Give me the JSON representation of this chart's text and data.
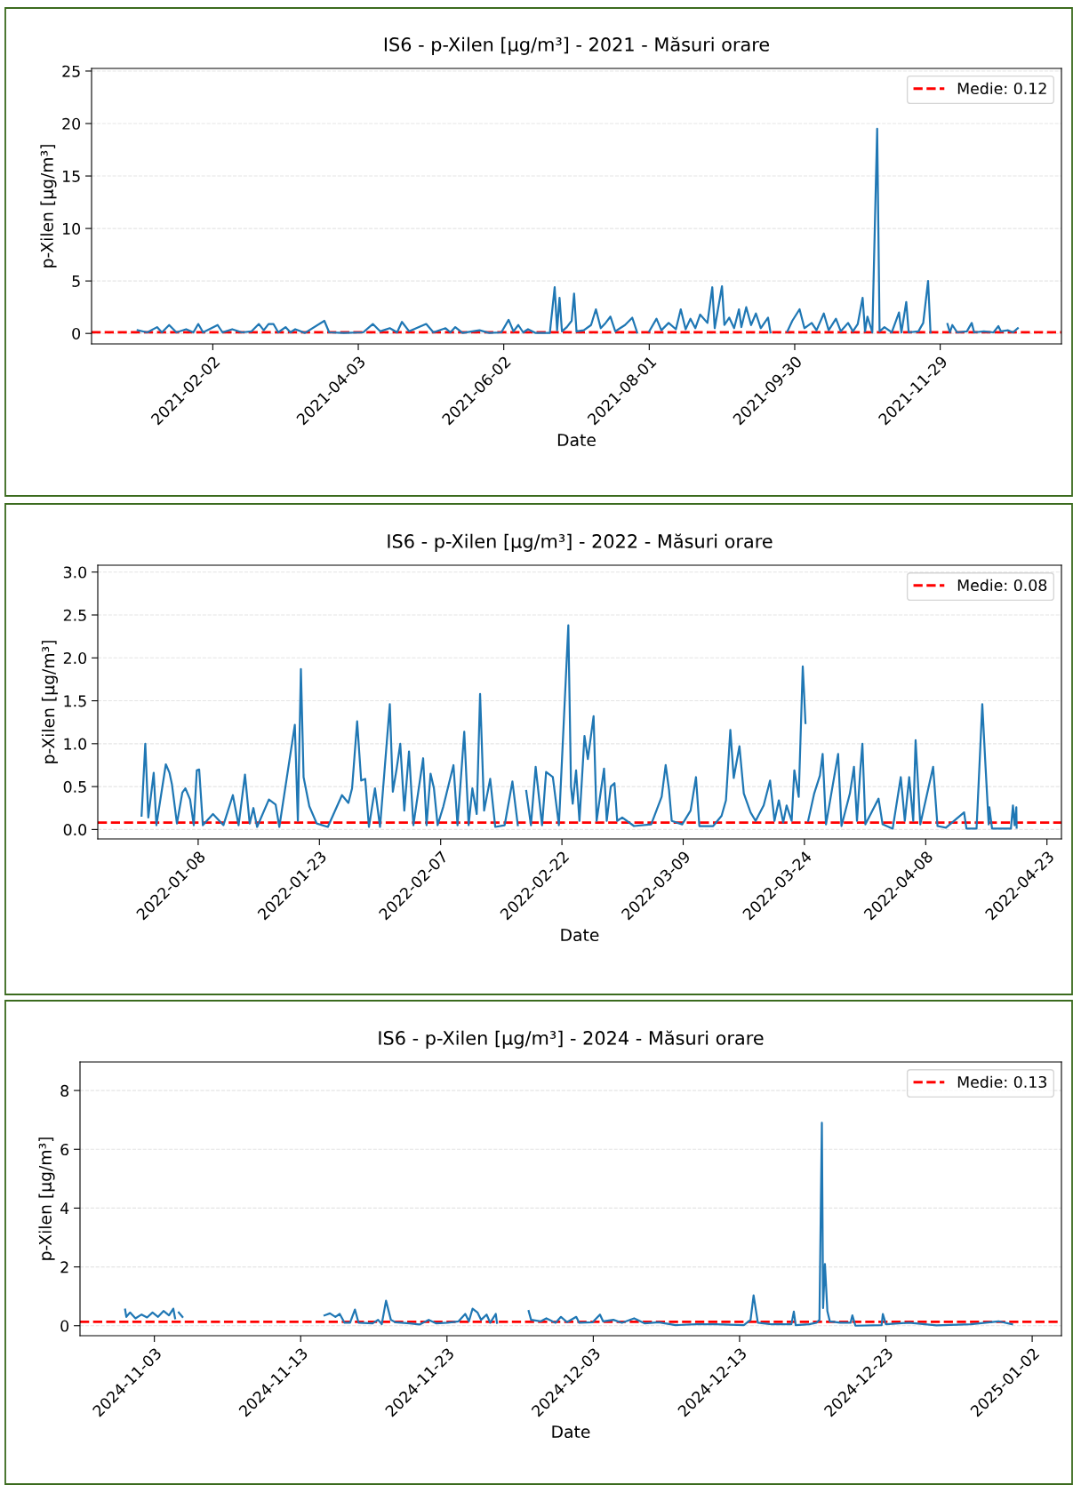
{
  "chart_data": [
    {
      "type": "line",
      "title": "IS6 - p-Xilen [µg/m³] - 2021 - Măsuri orare",
      "xlabel": "Date",
      "ylabel": "p-Xilen [µg/m³]",
      "xlim": [
        "2020-12-14",
        "2022-01-18"
      ],
      "xticks": [
        "2021-02-02",
        "2021-04-03",
        "2021-06-02",
        "2021-08-01",
        "2021-09-30",
        "2021-11-29"
      ],
      "ylim": [
        -1,
        25.25
      ],
      "yticks": [
        0,
        5,
        10,
        15,
        20,
        25
      ],
      "grid": "y",
      "legend": "top right",
      "ref_lines": [
        {
          "axis": "y",
          "value": 0.12,
          "label": "Medie: 0.12",
          "color": "#ff0000",
          "line_style": "dashed"
        }
      ],
      "series": [
        {
          "color": "#1f77b4",
          "x": [
            "2021-01-02",
            "2021-01-06",
            "2021-01-10",
            "2021-01-12",
            "2021-01-15",
            "2021-01-18",
            "2021-01-22",
            "2021-01-25",
            "2021-01-27",
            "2021-01-29",
            "2021-02-04",
            "2021-02-06",
            "2021-02-10",
            "2021-02-14",
            "2021-02-18",
            "2021-02-21",
            "2021-02-23",
            "2021-02-25",
            "2021-02-27",
            "2021-03-01",
            "2021-03-04",
            "2021-03-06",
            "2021-03-08",
            "2021-03-12",
            "2021-03-20",
            "2021-03-22",
            "2021-03-28",
            "2021-04-05",
            "2021-04-09",
            "2021-04-12",
            "2021-04-16",
            "2021-04-19",
            "2021-04-21",
            "2021-04-24",
            "2021-04-28",
            "2021-05-01",
            "2021-05-04",
            "2021-05-09",
            "2021-05-11",
            "2021-05-13",
            "2021-05-16",
            "2021-05-23",
            "2021-05-27",
            "2021-06-01",
            "2021-06-04",
            "2021-06-06",
            "2021-06-08",
            "2021-06-10",
            "2021-06-12",
            "2021-06-15",
            "2021-06-21",
            "2021-06-23",
            "2021-06-24",
            "2021-06-25",
            "2021-06-26",
            "2021-06-28",
            "2021-06-30",
            "2021-07-01",
            "2021-07-02",
            "2021-07-05",
            "2021-07-08",
            "2021-07-10",
            "2021-07-12",
            "2021-07-14",
            "2021-07-16",
            "2021-07-18",
            "2021-07-20",
            "2021-07-22",
            "2021-07-25",
            "2021-07-27",
            "2021-07-29",
            "2021-08-01",
            "2021-08-04",
            "2021-08-06",
            "2021-08-09",
            "2021-08-12",
            "2021-08-14",
            "2021-08-16",
            "2021-08-18",
            "2021-08-20",
            "2021-08-22",
            "2021-08-25",
            "2021-08-27",
            "2021-08-28",
            "2021-08-31",
            "2021-09-01",
            "2021-09-03",
            "2021-09-05",
            "2021-09-07",
            "2021-09-08",
            "2021-09-10",
            "2021-09-12",
            "2021-09-14",
            "2021-09-16",
            "2021-09-19",
            "2021-09-20",
            "2021-09-23",
            "2021-09-27",
            "2021-09-29",
            "2021-10-02",
            "2021-10-04",
            "2021-10-07",
            "2021-10-09",
            "2021-10-12",
            "2021-10-14",
            "2021-10-17",
            "2021-10-19",
            "2021-10-22",
            "2021-10-24",
            "2021-10-26",
            "2021-10-28",
            "2021-10-29",
            "2021-10-30",
            "2021-11-01",
            "2021-11-03",
            "2021-11-04",
            "2021-11-06",
            "2021-11-09",
            "2021-11-12",
            "2021-11-13",
            "2021-11-15",
            "2021-11-16",
            "2021-11-20",
            "2021-11-22",
            "2021-11-24",
            "2021-11-25",
            "2021-11-28",
            "2021-12-02",
            "2021-12-03",
            "2021-12-04",
            "2021-12-06",
            "2021-12-10",
            "2021-12-12",
            "2021-12-13",
            "2021-12-17",
            "2021-12-21",
            "2021-12-23",
            "2021-12-24",
            "2021-12-27",
            "2021-12-29",
            "2021-12-31"
          ],
          "values": [
            0.3,
            0.1,
            0.6,
            0.1,
            0.8,
            0.1,
            0.4,
            0.1,
            0.9,
            0.1,
            0.8,
            0.1,
            0.4,
            0.1,
            0.2,
            0.9,
            0.3,
            0.9,
            0.9,
            0.1,
            0.6,
            0.1,
            0.4,
            0.05,
            1.2,
            0.1,
            0.05,
            0.1,
            0.9,
            0.2,
            0.5,
            0.1,
            1.1,
            0.2,
            0.6,
            0.9,
            0.1,
            0.5,
            0.1,
            0.6,
            0.05,
            0.3,
            0.05,
            0.1,
            1.3,
            0.2,
            0.8,
            0.1,
            0.4,
            0.05,
            0.05,
            4.4,
            0.3,
            3.4,
            0.2,
            0.6,
            1.2,
            3.8,
            0.2,
            0.3,
            0.8,
            2.3,
            0.5,
            1.0,
            1.6,
            0.2,
            0.5,
            0.8,
            1.5,
            0.1,
            null,
            0.2,
            1.4,
            0.3,
            1.0,
            0.4,
            2.3,
            0.4,
            1.4,
            0.5,
            1.8,
            1.0,
            4.4,
            0.5,
            4.5,
            0.8,
            1.5,
            0.5,
            2.3,
            0.6,
            2.5,
            0.8,
            1.9,
            0.5,
            1.5,
            0.1,
            null,
            0.2,
            1.2,
            2.3,
            0.5,
            1.0,
            0.3,
            1.9,
            0.3,
            1.4,
            0.2,
            1.0,
            0.2,
            0.9,
            3.4,
            0.2,
            1.6,
            0.1,
            19.5,
            0.2,
            0.6,
            0.1,
            2.0,
            0.1,
            3.0,
            0.1,
            0.2,
            1.0,
            5.0,
            0.1,
            null,
            0.9,
            0.1,
            0.8,
            0.1,
            0.2,
            1.0,
            0.1,
            0.2,
            0.1,
            0.7,
            0.2,
            0.3,
            0.1,
            0.5
          ]
        }
      ]
    },
    {
      "type": "line",
      "title": "IS6 - p-Xilen [µg/m³] - 2022 - Măsuri orare",
      "xlabel": "Date",
      "ylabel": "p-Xilen [µg/m³]",
      "xlim": [
        "2021-12-26T14:00",
        "2022-04-24T19:00"
      ],
      "xticks": [
        "2022-01-08",
        "2022-01-23",
        "2022-02-07",
        "2022-02-22",
        "2022-03-09",
        "2022-03-24",
        "2022-04-08",
        "2022-04-23"
      ],
      "ylim": [
        -0.11,
        3.08
      ],
      "yticks": [
        {
          "value": 0,
          "label": "0.0"
        },
        0.5,
        {
          "value": 1,
          "label": "1.0"
        },
        1.5,
        {
          "value": 2,
          "label": "2.0"
        },
        2.5,
        {
          "value": 3,
          "label": "3.0"
        }
      ],
      "grid": "y",
      "legend": "top right",
      "ref_lines": [
        {
          "axis": "y",
          "value": 0.08,
          "label": "Medie: 0.08",
          "color": "#ff0000",
          "line_style": "dashed"
        }
      ],
      "series": [
        {
          "color": "#1f77b4",
          "x": [
            "2022-01-01T00:00",
            "2022-01-01T11:00",
            "2022-01-01T20:00",
            "2022-01-02T12:00",
            "2022-01-02T20:00",
            "2022-01-04T00:00",
            "2022-01-04T11:00",
            "2022-01-04T18:00",
            "2022-01-05T09:00",
            "2022-01-06T01:00",
            "2022-01-06T10:00",
            "2022-01-07T00:00",
            "2022-01-07T11:00",
            "2022-01-07T20:00",
            "2022-01-08T03:00",
            "2022-01-08T14:00",
            "2022-01-09T20:00",
            "2022-01-11T03:00",
            "2022-01-12T07:00",
            "2022-01-13T00:00",
            "2022-01-13T19:00",
            "2022-01-14T09:00",
            "2022-01-14T20:00",
            "2022-01-15T07:00",
            "2022-01-16T18:00",
            "2022-01-17T14:00",
            "2022-01-18T01:00",
            "2022-01-19T23:00",
            "2022-01-20T08:00",
            "2022-01-20T17:00",
            "2022-01-21T01:00",
            "2022-01-21T18:00",
            "2022-01-22T16:00",
            "2022-01-24T01:00",
            "2022-01-25T19:00",
            "2022-01-26T14:00",
            "2022-01-27T01:00",
            "2022-01-27T16:00",
            "2022-01-28T04:00",
            "2022-01-28T16:00",
            "2022-01-29T03:00",
            "2022-01-29T21:00",
            "2022-01-30T12:00",
            "2022-01-31T17:00",
            "2022-02-01T02:00",
            "2022-02-01T13:00",
            "2022-02-02T00:00",
            "2022-02-02T12:00",
            "2022-02-03T02:00",
            "2022-02-03T15:00",
            "2022-02-04T20:00",
            "2022-02-05T06:00",
            "2022-02-05T18:00",
            "2022-02-06T04:00",
            "2022-02-06T15:00",
            "2022-02-07T08:00",
            "2022-02-08T14:00",
            "2022-02-09T02:00",
            "2022-02-09T22:00",
            "2022-02-10T11:00",
            "2022-02-10T22:00",
            "2022-02-11T11:00",
            "2022-02-11T21:00",
            "2022-02-12T09:00",
            "2022-02-13T03:00",
            "2022-02-13T18:00",
            "2022-02-14T22:00",
            "2022-02-15T21:00",
            "2022-02-16T13:00",
            "2022-02-17T00:00",
            "2022-02-17T14:00",
            "2022-02-18T04:00",
            "2022-02-18T18:00",
            "2022-02-19T13:00",
            "2022-02-20T01:00",
            "2022-02-20T21:00",
            "2022-02-21T15:00",
            "2022-02-22T19:00",
            "2022-02-23T03:00",
            "2022-02-23T08:00",
            "2022-02-23T18:00",
            "2022-02-24T04:00",
            "2022-02-24T19:00",
            "2022-02-25T05:00",
            "2022-02-25T22:00",
            "2022-02-26T07:00",
            "2022-02-27T05:00",
            "2022-02-27T13:00",
            "2022-02-28T01:00",
            "2022-02-28T12:00",
            "2022-02-28T20:00",
            "2022-03-01T11:00",
            "2022-03-02T22:00",
            "2022-03-05T01:00",
            "2022-03-06T08:00",
            "2022-03-06T20:00",
            "2022-03-07T06:00",
            "2022-03-07T14:00",
            "2022-03-08T21:00",
            "2022-03-09T22:00",
            "2022-03-10T14:00",
            "2022-03-11T00:00",
            "2022-03-12T17:00",
            "2022-03-13T18:00",
            "2022-03-14T07:00",
            "2022-03-14T20:00",
            "2022-03-15T06:00",
            "2022-03-15T23:00",
            "2022-03-16T12:00",
            "2022-03-17T08:00",
            "2022-03-17T23:00",
            "2022-03-18T23:00",
            "2022-03-19T18:00",
            "2022-03-20T07:00",
            "2022-03-20T20:00",
            "2022-03-21T09:00",
            "2022-03-21T19:00",
            "2022-03-22T10:00",
            "2022-03-22T18:00",
            "2022-03-23T07:00",
            "2022-03-23T19:00",
            "2022-03-23T23:00",
            "2022-03-24T03:00",
            "2022-03-24T06:00",
            "2022-03-24T11:00",
            "2022-03-25T05:00",
            "2022-03-25T22:00",
            "2022-03-26T06:00",
            "2022-03-26T16:00",
            "2022-03-28T04:00",
            "2022-03-28T14:00",
            "2022-03-29T15:00",
            "2022-03-30T03:00",
            "2022-03-30T12:00",
            "2022-03-30T22:00",
            "2022-03-31T04:00",
            "2022-03-31T13:00",
            "2022-04-02T04:00",
            "2022-04-02T16:00",
            "2022-04-03T22:00",
            "2022-04-04T22:00",
            "2022-04-05T10:00",
            "2022-04-05T23:00",
            "2022-04-06T11:00",
            "2022-04-06T18:00",
            "2022-04-07T08:00",
            "2022-04-08T22:00",
            "2022-04-09T11:00",
            "2022-04-10T12:00",
            "2022-04-12T18:00",
            "2022-04-13T01:00",
            "2022-04-14T07:00",
            "2022-04-15T00:00",
            "2022-04-15T09:00",
            "2022-04-15T19:00",
            "2022-04-15T21:00",
            "2022-04-16T05:00",
            "2022-04-18T13:00",
            "2022-04-18T19:00",
            "2022-04-19T00:00",
            "2022-04-19T05:00",
            "2022-04-19T06:00"
          ],
          "values": [
            0.16,
            1.0,
            0.14,
            0.66,
            0.05,
            0.76,
            0.66,
            0.53,
            0.07,
            0.43,
            0.48,
            0.35,
            0.05,
            0.69,
            0.7,
            0.05,
            0.18,
            0.05,
            0.4,
            0.05,
            0.64,
            0.07,
            0.25,
            0.03,
            0.35,
            0.29,
            0.03,
            1.22,
            0.1,
            1.87,
            0.61,
            0.27,
            0.07,
            0.03,
            0.4,
            0.31,
            0.48,
            1.26,
            0.57,
            0.59,
            0.03,
            0.48,
            0.03,
            1.46,
            0.44,
            0.7,
            1.0,
            0.22,
            0.91,
            0.05,
            0.83,
            0.05,
            0.65,
            0.48,
            0.05,
            0.27,
            0.75,
            0.05,
            1.14,
            0.05,
            0.48,
            0.18,
            1.58,
            0.22,
            0.59,
            0.03,
            0.05,
            0.56,
            0.05,
            null,
            0.45,
            0.05,
            0.73,
            0.05,
            0.67,
            0.61,
            0.05,
            2.38,
            0.5,
            0.3,
            0.69,
            0.1,
            1.09,
            0.82,
            1.32,
            0.1,
            0.71,
            0.1,
            0.5,
            0.54,
            0.1,
            0.14,
            0.04,
            0.06,
            0.38,
            0.75,
            0.46,
            0.1,
            0.06,
            0.22,
            0.61,
            0.04,
            0.04,
            0.16,
            0.34,
            1.16,
            0.6,
            0.97,
            0.42,
            0.2,
            0.1,
            0.28,
            0.57,
            0.1,
            0.34,
            0.08,
            0.28,
            0.1,
            0.69,
            0.38,
            1.9,
            1.58,
            1.24,
            null,
            0.1,
            0.42,
            0.63,
            0.88,
            0.06,
            0.88,
            0.04,
            0.42,
            0.73,
            0.1,
            0.7,
            1.0,
            0.06,
            0.36,
            0.06,
            0.01,
            0.61,
            0.1,
            0.61,
            0.1,
            1.04,
            0.06,
            0.73,
            0.04,
            0.02,
            0.2,
            0.01,
            0.01,
            1.46,
            0.78,
            0.06,
            0.26,
            0.01,
            0.01,
            0.28,
            0.05,
            0.26,
            0.02
          ]
        }
      ]
    },
    {
      "type": "line",
      "title": "IS6 - p-Xilen [µg/m³] - 2024 - Măsuri orare",
      "xlabel": "Date",
      "ylabel": "p-Xilen [µg/m³]",
      "xlim": [
        "2024-10-28T22:00",
        "2025-01-04T00:00"
      ],
      "xticks": [
        "2024-11-03",
        "2024-11-13",
        "2024-11-23",
        "2024-12-03",
        "2024-12-13",
        "2024-12-23",
        "2025-01-02"
      ],
      "ylim": [
        -0.34,
        8.97
      ],
      "yticks": [
        0,
        2,
        4,
        6,
        8
      ],
      "grid": "y",
      "legend": "top right",
      "ref_lines": [
        {
          "axis": "y",
          "value": 0.13,
          "label": "Medie: 0.13",
          "color": "#ff0000",
          "line_style": "dashed"
        }
      ],
      "series": [
        {
          "color": "#1f77b4",
          "x": [
            "2024-11-01T00:00",
            "2024-11-01T02:00",
            "2024-11-01T08:00",
            "2024-11-01T17:00",
            "2024-11-02T03:00",
            "2024-11-02T12:00",
            "2024-11-02T21:00",
            "2024-11-03T06:00",
            "2024-11-03T15:00",
            "2024-11-04T00:00",
            "2024-11-04T07:00",
            "2024-11-04T10:00",
            "2024-11-04T14:00",
            "2024-11-04T16:00",
            "2024-11-04T22:00",
            "2024-11-05T06:00",
            "2024-11-14T15:00",
            "2024-11-15T00:00",
            "2024-11-15T09:00",
            "2024-11-15T16:00",
            "2024-11-16T00:00",
            "2024-11-16T09:00",
            "2024-11-16T17:00",
            "2024-11-16T23:00",
            "2024-11-17T22:00",
            "2024-11-18T07:00",
            "2024-11-18T13:00",
            "2024-11-18T20:00",
            "2024-11-19T04:00",
            "2024-11-19T11:00",
            "2024-11-20T11:00",
            "2024-11-21T03:00",
            "2024-11-21T18:00",
            "2024-11-22T06:00",
            "2024-11-23T01:00",
            "2024-11-23T19:00",
            "2024-11-24T06:00",
            "2024-11-24T12:00",
            "2024-11-24T18:00",
            "2024-11-25T02:00",
            "2024-11-25T08:00",
            "2024-11-25T17:00",
            "2024-11-25T23:00",
            "2024-11-26T08:00",
            "2024-11-26T10:00",
            "2024-11-27T00:00",
            "2024-11-28T14:00",
            "2024-11-28T18:00",
            "2024-11-29T10:00",
            "2024-11-29T19:00",
            "2024-11-30T10:00",
            "2024-11-30T19:00",
            "2024-12-01T05:00",
            "2024-12-01T20:00",
            "2024-12-02T01:00",
            "2024-12-02T23:00",
            "2024-12-03T11:00",
            "2024-12-03T16:00",
            "2024-12-04T09:00",
            "2024-12-04T23:00",
            "2024-12-05T19:00",
            "2024-12-06T12:00",
            "2024-12-07T11:00",
            "2024-12-08T15:00",
            "2024-12-10T00:00",
            "2024-12-11T10:00",
            "2024-12-13T07:00",
            "2024-12-13T18:00",
            "2024-12-13T23:00",
            "2024-12-14T06:00",
            "2024-12-15T04:00",
            "2024-12-16T13:00",
            "2024-12-16T17:00",
            "2024-12-16T20:00",
            "2024-12-17T18:00",
            "2024-12-18T06:00",
            "2024-12-18T11:00",
            "2024-12-18T15:00",
            "2024-12-18T17:00",
            "2024-12-18T20:00",
            "2024-12-19T00:00",
            "2024-12-19T04:00",
            "2024-12-19T21:00",
            "2024-12-20T14:00",
            "2024-12-20T17:00",
            "2024-12-20T22:00",
            "2024-12-22T17:00",
            "2024-12-22T19:00",
            "2024-12-23T00:00",
            "2024-12-24T14:00",
            "2024-12-26T11:00",
            "2024-12-28T19:00",
            "2024-12-30T17:00",
            "2024-12-31T15:00"
          ],
          "values": [
            0.55,
            0.3,
            0.45,
            0.25,
            0.38,
            0.28,
            0.45,
            0.3,
            0.5,
            0.35,
            0.58,
            0.25,
            null,
            0.45,
            0.3,
            null,
            0.35,
            0.42,
            0.3,
            0.4,
            0.1,
            0.1,
            0.55,
            0.1,
            0.08,
            0.2,
            0.05,
            0.85,
            0.2,
            0.12,
            0.08,
            0.04,
            0.2,
            0.08,
            0.1,
            0.15,
            0.4,
            0.15,
            0.58,
            0.45,
            0.2,
            0.38,
            0.1,
            0.4,
            0.1,
            null,
            0.5,
            0.2,
            0.15,
            0.25,
            0.1,
            0.3,
            0.12,
            0.3,
            0.1,
            0.12,
            0.38,
            0.15,
            0.2,
            0.1,
            0.25,
            0.08,
            0.12,
            0.02,
            0.05,
            0.05,
            0.02,
            0.2,
            1.03,
            0.1,
            0.05,
            0.05,
            0.48,
            0.02,
            0.05,
            0.1,
            0.2,
            6.9,
            0.6,
            2.1,
            0.5,
            0.15,
            0.1,
            0.1,
            0.35,
            0.0,
            0.02,
            0.4,
            0.05,
            0.1,
            0.01,
            0.05,
            0.15,
            0.05
          ]
        }
      ]
    }
  ]
}
